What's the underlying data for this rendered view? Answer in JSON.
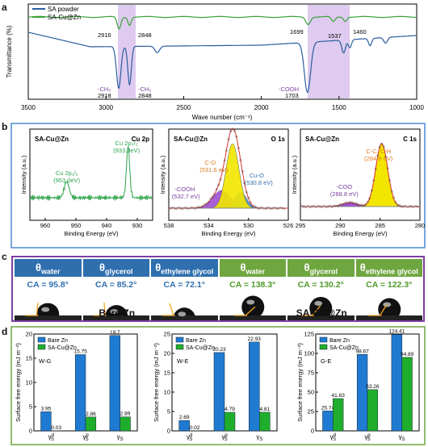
{
  "panel_labels": {
    "a": "a",
    "b": "b",
    "c": "c",
    "d": "d"
  },
  "colors": {
    "sa_powder": "#2b5f9e",
    "sa_cuzn": "#3aa13a",
    "highlight": "#d8c2ec",
    "bare_zn": "#1f7bd1",
    "sa_cuzn_bar": "#1fae2c",
    "frame_b": "#4a8ad0",
    "frame_c": "#7b3fa0",
    "frame_d": "#6fa640"
  },
  "chart_data": [
    {
      "type": "line",
      "panel": "a",
      "xlabel": "Wave number (cm⁻¹)",
      "ylabel": "Transmittance (%)",
      "xlim": [
        3500,
        1000
      ],
      "xticks": [
        3500,
        3000,
        2500,
        2000,
        1500,
        1000
      ],
      "series": [
        {
          "name": "SA powder"
        },
        {
          "name": "SA-Cu@Zn"
        }
      ],
      "annotations": {
        "green_peaks": [
          "2916",
          "2848",
          "1699",
          "1537",
          "1460"
        ],
        "blue_ch3": "-CH₃",
        "blue_ch3_val": "2918",
        "blue_ch2": "-CH₂",
        "blue_ch2_val": "2848",
        "blue_cooh": "-COOH",
        "blue_cooh_val": "1703"
      }
    },
    {
      "type": "line",
      "panel": "b1",
      "sample": "SA-Cu@Zn",
      "element": "Cu 2p",
      "xlabel": "Binding Energy (eV)",
      "ylabel": "Intensity (a.u.)",
      "xlim": [
        965,
        925
      ],
      "xticks": [
        "960",
        "950",
        "940",
        "930"
      ],
      "peaks": [
        {
          "label": "Cu 2p₃/₂",
          "value": "(933.0eV)",
          "x": 933.0
        },
        {
          "label": "Cu 2p₁/₂",
          "value": "(953.0eV)",
          "x": 953.0
        }
      ]
    },
    {
      "type": "line",
      "panel": "b2",
      "sample": "SA-Cu@Zn",
      "element": "O 1s",
      "xlabel": "Binding Energy (eV)",
      "ylabel": "Intensity (a.u.)",
      "xlim": [
        538,
        526
      ],
      "xticks": [
        "538",
        "534",
        "530",
        "526"
      ],
      "peaks": [
        {
          "label": "C-O",
          "value": "(531.6 eV)",
          "x": 531.6
        },
        {
          "label": "-COOH",
          "value": "(532.7 eV)",
          "x": 532.7
        },
        {
          "label": "Cu-O",
          "value": "(530.8 eV)",
          "x": 530.8
        }
      ]
    },
    {
      "type": "line",
      "panel": "b3",
      "sample": "SA-Cu@Zn",
      "element": "C 1s",
      "xlabel": "Binding Energy (eV)",
      "ylabel": "Intensity (a.u.)",
      "xlim": [
        295,
        280
      ],
      "xticks": [
        "295",
        "290",
        "285",
        "280"
      ],
      "peaks": [
        {
          "label": "C-C, C-H",
          "value": "(284.8 eV)",
          "x": 284.8
        },
        {
          "label": "-COO",
          "value": "(288.8 eV)",
          "x": 288.8
        }
      ]
    },
    {
      "type": "bar",
      "panel": "d1",
      "tag": "W-G",
      "ylabel": "Surface free energy (mJ m⁻²)",
      "ylim": [
        0,
        20
      ],
      "yticks": [
        0,
        5,
        10,
        15,
        20
      ],
      "categories": [
        "γSd",
        "γSp",
        "γS"
      ],
      "series": [
        {
          "name": "Bare Zn",
          "values": [
            3.95,
            15.75,
            19.7
          ]
        },
        {
          "name": "SA-Cu@Zn",
          "values": [
            0.03,
            2.86,
            2.89
          ]
        }
      ],
      "labels": [
        [
          "3.95",
          "15.75",
          "19.7"
        ],
        [
          "0.03",
          "2.86",
          "2.89"
        ]
      ]
    },
    {
      "type": "bar",
      "panel": "d2",
      "tag": "W-E",
      "ylabel": "Surface free energy (mJ m⁻²)",
      "ylim": [
        0,
        25
      ],
      "yticks": [
        0,
        5,
        10,
        15,
        20,
        25
      ],
      "categories": [
        "γSd",
        "γSp",
        "γS"
      ],
      "series": [
        {
          "name": "Bare Zn",
          "values": [
            2.69,
            20.23,
            22.93
          ]
        },
        {
          "name": "SA-Cu@Zn",
          "values": [
            0.02,
            4.79,
            4.81
          ]
        }
      ],
      "labels": [
        [
          "2.69",
          "20.23",
          "22.93"
        ],
        [
          "0.02",
          "4.79",
          "4.81"
        ]
      ]
    },
    {
      "type": "bar",
      "panel": "d3",
      "tag": "G-E",
      "ylabel": "Surface free energy (mJ m⁻²)",
      "ylim": [
        0,
        125
      ],
      "yticks": [
        0,
        25,
        50,
        75,
        100,
        125
      ],
      "categories": [
        "γSd",
        "γSp",
        "γS"
      ],
      "series": [
        {
          "name": "Bare Zn",
          "values": [
            25.74,
            98.67,
            124.41
          ]
        },
        {
          "name": "SA-Cu@Zn",
          "values": [
            41.63,
            53.26,
            94.89
          ]
        }
      ],
      "labels": [
        [
          "25.74",
          "98.67",
          "124.41"
        ],
        [
          "41.63",
          "53.26",
          "94.89"
        ]
      ]
    }
  ],
  "contact_angle": {
    "bare_label": "Bare Zn",
    "sa_label": "SA-Cu@Zn",
    "columns": [
      {
        "probe": "water",
        "ca": "CA = 95.8°",
        "angle": 95.8
      },
      {
        "probe": "glycerol",
        "ca": "CA = 85.2°",
        "angle": 85.2
      },
      {
        "probe": "ethylene glycol",
        "ca": "CA = 72.1°",
        "angle": 72.1
      },
      {
        "probe": "water",
        "ca": "CA = 138.3°",
        "angle": 138.3
      },
      {
        "probe": "glycerol",
        "ca": "CA = 130.2°",
        "angle": 130.2
      },
      {
        "probe": "ethylene glycol",
        "ca": "CA = 122.3°",
        "angle": 122.3
      }
    ],
    "theta": "θ"
  }
}
